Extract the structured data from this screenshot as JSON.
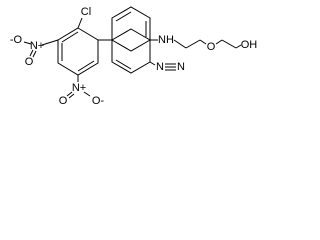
{
  "atoms": {
    "cl": "Cl",
    "nitro_left": {
      "o_minus": "-O",
      "n": "N+",
      "o": "O"
    },
    "nitro_bottom": {
      "o": "O",
      "n": "N+",
      "o_minus": "O-"
    },
    "amine": "NH",
    "azo": [
      "N",
      "N"
    ],
    "ether": "O",
    "hydroxyl": "OH"
  }
}
